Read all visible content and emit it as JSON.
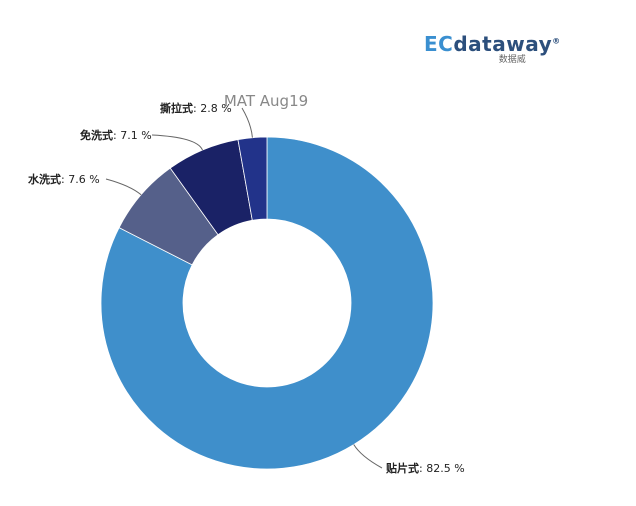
{
  "logo": {
    "prefix": "EC",
    "name": "dataway",
    "registered": "®",
    "subtitle": "数据威"
  },
  "chart_data": {
    "type": "pie",
    "donut": true,
    "title": "MAT Aug19",
    "unit": "%",
    "slices": [
      {
        "label": "贴片式",
        "value": 82.5,
        "color": "#3f8fcb"
      },
      {
        "label": "水洗式",
        "value": 7.6,
        "color": "#55608a"
      },
      {
        "label": "免洗式",
        "value": 7.1,
        "color": "#1a2266"
      },
      {
        "label": "撕拉式",
        "value": 2.8,
        "color": "#22338a"
      }
    ]
  }
}
